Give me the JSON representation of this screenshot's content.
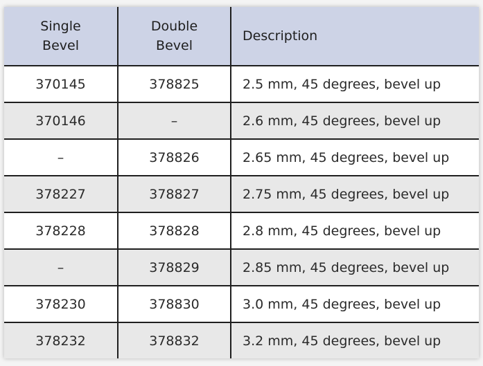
{
  "header": {
    "col1_line1": "Single",
    "col1_line2": "Bevel",
    "col2_line1": "Double",
    "col2_line2": "Bevel",
    "col3": "Description"
  },
  "rows": [
    {
      "single": "370145",
      "double": "378825",
      "description": "2.5 mm, 45 degrees, bevel up"
    },
    {
      "single": "370146",
      "double": "–",
      "description": "2.6 mm, 45 degrees, bevel up"
    },
    {
      "single": "–",
      "double": "378826",
      "description": "2.65 mm, 45 degrees, bevel up"
    },
    {
      "single": "378227",
      "double": "378827",
      "description": "2.75 mm, 45 degrees, bevel up"
    },
    {
      "single": "378228",
      "double": "378828",
      "description": "2.8 mm, 45 degrees, bevel up"
    },
    {
      "single": "–",
      "double": "378829",
      "description": "2.85 mm, 45 degrees, bevel up"
    },
    {
      "single": "378230",
      "double": "378830",
      "description": "3.0 mm, 45 degrees, bevel up"
    },
    {
      "single": "378232",
      "double": "378832",
      "description": "3.2 mm, 45 degrees, bevel up"
    }
  ],
  "colors": {
    "header_bg": "#cdd3e6",
    "alt_row_bg": "#e8e8e8",
    "border": "#1e1e1e"
  }
}
